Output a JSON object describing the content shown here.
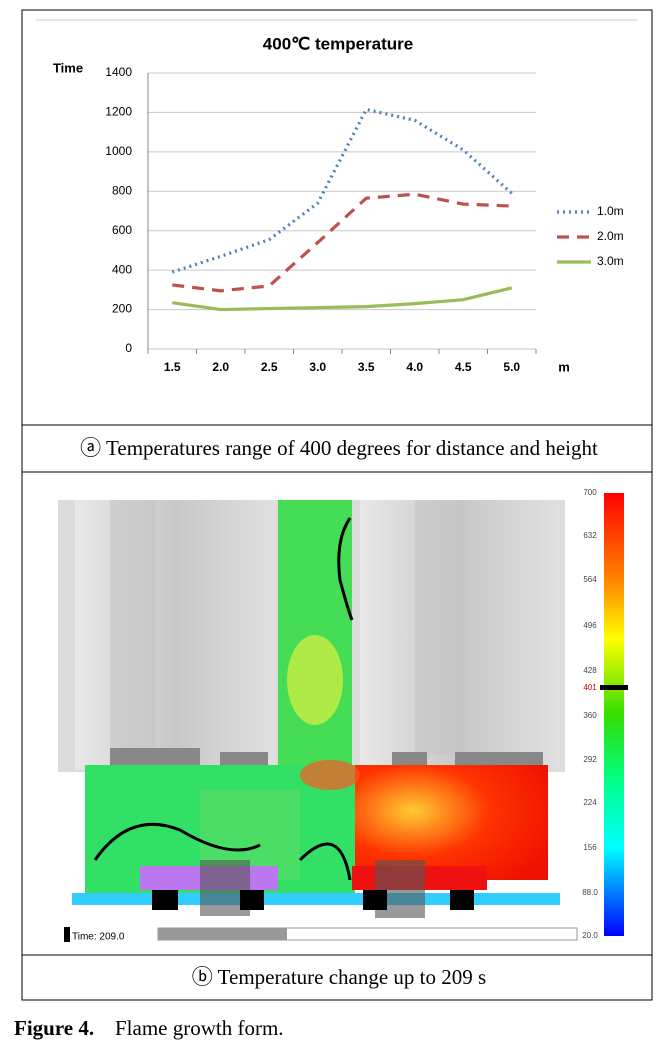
{
  "chart_data": {
    "type": "line",
    "title": "400℃ temperature",
    "y_label": "Time",
    "x_label": "m",
    "categories": [
      "1.5",
      "2.0",
      "2.5",
      "3.0",
      "3.5",
      "4.0",
      "4.5",
      "5.0"
    ],
    "series": [
      {
        "name": "1.0m",
        "color": "#4f81bd",
        "style": "dotted",
        "values": [
          390,
          470,
          555,
          740,
          1215,
          1160,
          1010,
          790
        ]
      },
      {
        "name": "2.0m",
        "color": "#c0504d",
        "style": "dashed",
        "values": [
          325,
          295,
          320,
          540,
          765,
          785,
          735,
          725
        ]
      },
      {
        "name": "3.0m",
        "color": "#9bbb59",
        "style": "solid",
        "values": [
          235,
          200,
          205,
          210,
          215,
          230,
          250,
          310
        ]
      }
    ],
    "ylim": [
      0,
      1400
    ],
    "yticks": [
      0,
      200,
      400,
      600,
      800,
      1000,
      1200,
      1400
    ],
    "grid": true,
    "legend": "right"
  },
  "panel_a_caption": "ⓐ Temperatures range of 400 degrees for distance and height",
  "panel_b": {
    "colorbar_labels": [
      "700",
      "632",
      "564",
      "496",
      "428",
      "360",
      "292",
      "224",
      "156",
      "88.0",
      "20.0"
    ],
    "colorbar_marker": "401",
    "time_label": "Time: 209.0"
  },
  "panel_b_caption": "ⓑ Temperature change up to 209 s",
  "figure_label": "Figure 4.",
  "figure_caption": "Flame growth form."
}
